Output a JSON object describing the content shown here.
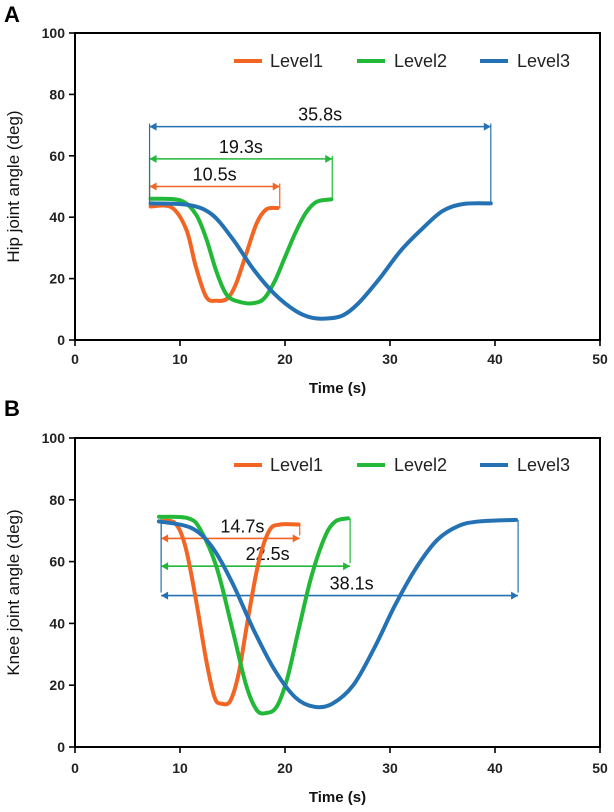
{
  "chart_data": [
    {
      "panel": "A",
      "type": "line",
      "xlabel": "Time (s)",
      "ylabel": "Hip joint angle (deg)",
      "xlim": [
        0,
        50
      ],
      "ylim": [
        0,
        100
      ],
      "xticks": [
        "0",
        "10",
        "20",
        "30",
        "40",
        "50"
      ],
      "yticks": [
        "0",
        "20",
        "40",
        "60",
        "80",
        "100"
      ],
      "legend_position": "top",
      "series": [
        {
          "name": "Level1",
          "color": "#f26522",
          "points": [
            [
              7.2,
              43.5
            ],
            [
              9.2,
              43.2
            ],
            [
              10.6,
              36
            ],
            [
              11.5,
              24
            ],
            [
              12.5,
              14
            ],
            [
              13.5,
              12.8
            ],
            [
              14.5,
              13.5
            ],
            [
              15.3,
              18
            ],
            [
              16.3,
              28
            ],
            [
              17.3,
              38
            ],
            [
              18.2,
              42.5
            ],
            [
              19.3,
              43
            ]
          ]
        },
        {
          "name": "Level2",
          "color": "#22b838",
          "points": [
            [
              7.2,
              46
            ],
            [
              10,
              45.5
            ],
            [
              11.5,
              41
            ],
            [
              12.5,
              33
            ],
            [
              13.5,
              22
            ],
            [
              14.5,
              14.5
            ],
            [
              15.8,
              12.3
            ],
            [
              17,
              12
            ],
            [
              18,
              13.5
            ],
            [
              19,
              19
            ],
            [
              20,
              27
            ],
            [
              21,
              35
            ],
            [
              22,
              41.5
            ],
            [
              23,
              45
            ],
            [
              24.4,
              45.8
            ]
          ]
        },
        {
          "name": "Level3",
          "color": "#2472b4",
          "points": [
            [
              7.2,
              44.5
            ],
            [
              10.8,
              44
            ],
            [
              13,
              41
            ],
            [
              15,
              33
            ],
            [
              17,
              23
            ],
            [
              19,
              15
            ],
            [
              21,
              9.5
            ],
            [
              22.5,
              7.3
            ],
            [
              24,
              7
            ],
            [
              25.5,
              8
            ],
            [
              27,
              12
            ],
            [
              29,
              20
            ],
            [
              31,
              29
            ],
            [
              33,
              36
            ],
            [
              35,
              42
            ],
            [
              37,
              44.3
            ],
            [
              39.6,
              44.5
            ]
          ]
        }
      ],
      "annotations": [
        {
          "label": "10.5s",
          "color": "#f26522",
          "x_start": 7.1,
          "x_end": 19.5,
          "y": 50
        },
        {
          "label": "19.3s",
          "color": "#22b838",
          "x_start": 7.1,
          "x_end": 24.5,
          "y": 59
        },
        {
          "label": "35.8s",
          "color": "#2472b4",
          "x_start": 7.1,
          "x_end": 39.6,
          "y": 69.5
        }
      ]
    },
    {
      "panel": "B",
      "type": "line",
      "xlabel": "Time (s)",
      "ylabel": "Knee joint angle (deg)",
      "xlim": [
        0,
        50
      ],
      "ylim": [
        0,
        100
      ],
      "xticks": [
        "0",
        "10",
        "20",
        "30",
        "40",
        "50"
      ],
      "yticks": [
        "0",
        "20",
        "40",
        "60",
        "80",
        "100"
      ],
      "legend_position": "top",
      "series": [
        {
          "name": "Level1",
          "color": "#f26522",
          "points": [
            [
              8,
              73
            ],
            [
              9.5,
              72.5
            ],
            [
              10.5,
              65
            ],
            [
              11.5,
              48
            ],
            [
              12.5,
              28
            ],
            [
              13.3,
              16
            ],
            [
              14,
              14
            ],
            [
              14.8,
              15
            ],
            [
              15.6,
              24
            ],
            [
              16.5,
              42
            ],
            [
              17.5,
              60
            ],
            [
              18.5,
              70
            ],
            [
              19.5,
              72
            ],
            [
              21.3,
              72
            ]
          ]
        },
        {
          "name": "Level2",
          "color": "#22b838",
          "points": [
            [
              8,
              74.5
            ],
            [
              10.8,
              74
            ],
            [
              12,
              70
            ],
            [
              13.5,
              58
            ],
            [
              15,
              38
            ],
            [
              16.3,
              20
            ],
            [
              17.3,
              12
            ],
            [
              18.2,
              11
            ],
            [
              19.2,
              13
            ],
            [
              20.2,
              22
            ],
            [
              21.3,
              38
            ],
            [
              22.5,
              55
            ],
            [
              23.8,
              68
            ],
            [
              24.8,
              73
            ],
            [
              26,
              74
            ]
          ]
        },
        {
          "name": "Level3",
          "color": "#2472b4",
          "points": [
            [
              8,
              73
            ],
            [
              11,
              71
            ],
            [
              13,
              65
            ],
            [
              15,
              53
            ],
            [
              17,
              38
            ],
            [
              19,
              25
            ],
            [
              21,
              16
            ],
            [
              22.8,
              13
            ],
            [
              24.5,
              14
            ],
            [
              26.5,
              20
            ],
            [
              28.5,
              32
            ],
            [
              30.5,
              46
            ],
            [
              32.5,
              58
            ],
            [
              34.5,
              67
            ],
            [
              36.5,
              71.5
            ],
            [
              38.5,
              73
            ],
            [
              42,
              73.5
            ]
          ]
        }
      ],
      "annotations": [
        {
          "label": "14.7s",
          "color": "#f26522",
          "x_start": 8.2,
          "x_end": 21.4,
          "y": 67.5
        },
        {
          "label": "22.5s",
          "color": "#22b838",
          "x_start": 8.2,
          "x_end": 26.2,
          "y": 58.5
        },
        {
          "label": "38.1s",
          "color": "#2472b4",
          "x_start": 8.2,
          "x_end": 42.2,
          "y": 49
        }
      ]
    }
  ]
}
